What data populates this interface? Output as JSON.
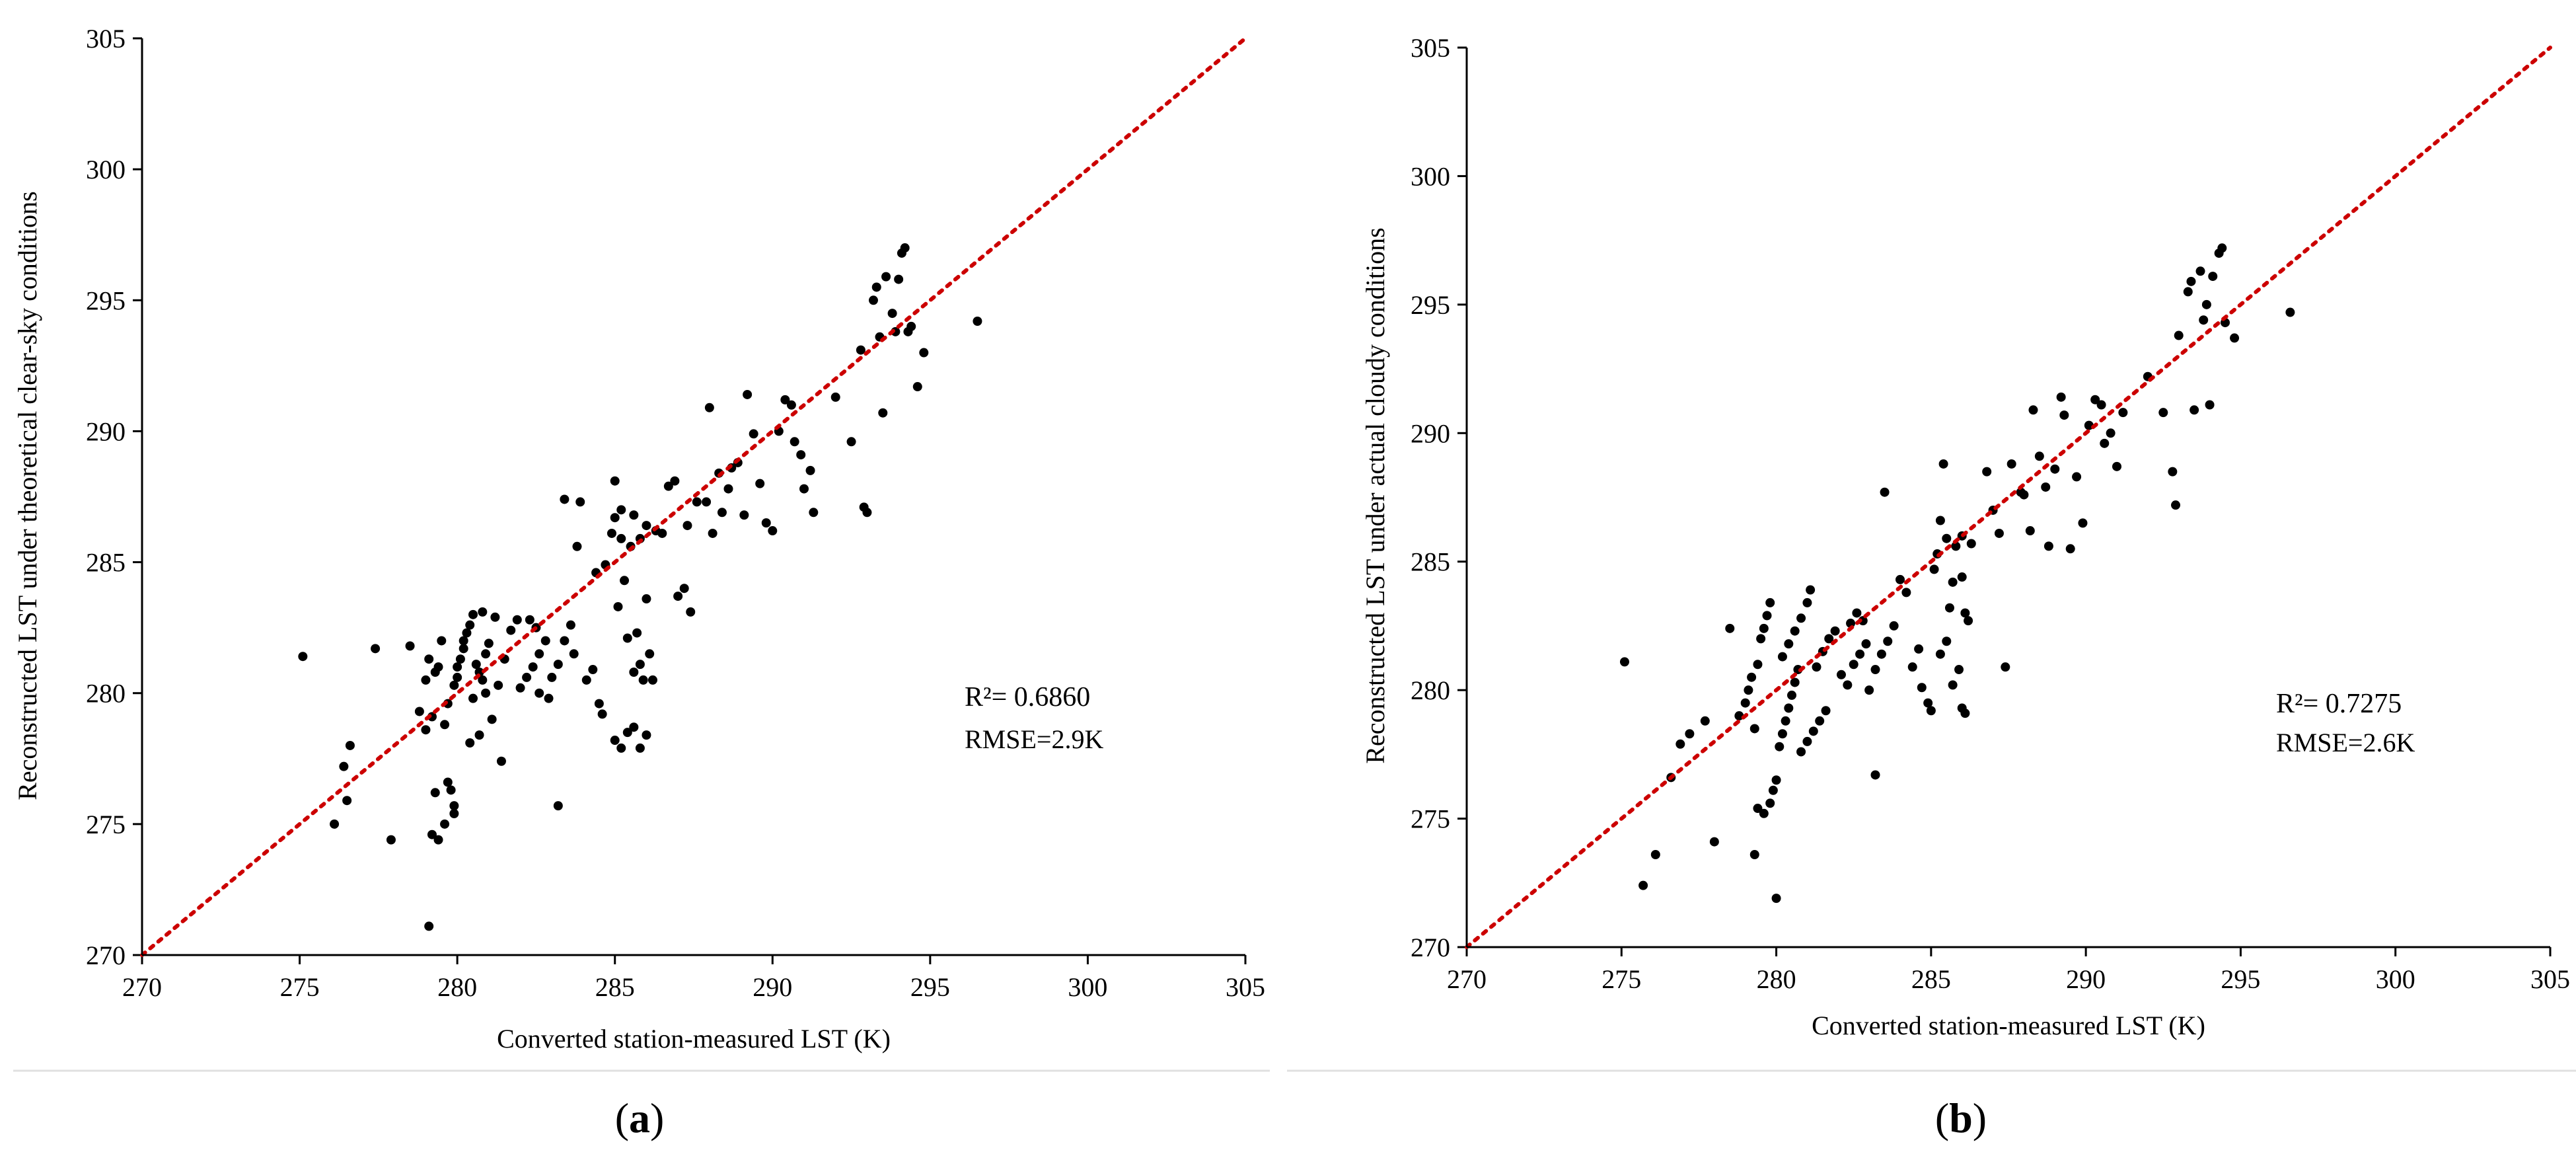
{
  "chart_data": [
    {
      "type": "scatter",
      "panel": "a",
      "caption_letter": "a",
      "xlabel": "Converted station-measured LST (K)",
      "ylabel": "Reconstructed LST under theoretical clear-sky conditions",
      "xlim": [
        270,
        305
      ],
      "ylim": [
        270,
        305
      ],
      "xticks": [
        270,
        275,
        280,
        285,
        290,
        295,
        300,
        305
      ],
      "yticks": [
        270,
        275,
        280,
        285,
        290,
        295,
        300,
        305
      ],
      "stats": {
        "r2": "R²= 0.6860",
        "rmse": "RMSE=2.9K"
      },
      "reference_line": "1:1",
      "points": [
        [
          275.1,
          281.4
        ],
        [
          276.1,
          275.0
        ],
        [
          276.5,
          275.9
        ],
        [
          276.6,
          278.0
        ],
        [
          276.4,
          277.2
        ],
        [
          277.4,
          281.7
        ],
        [
          277.9,
          274.4
        ],
        [
          278.5,
          281.8
        ],
        [
          279.0,
          280.5
        ],
        [
          278.8,
          279.3
        ],
        [
          279.0,
          278.6
        ],
        [
          279.2,
          279.1
        ],
        [
          279.3,
          280.8
        ],
        [
          279.4,
          281.0
        ],
        [
          279.1,
          281.3
        ],
        [
          279.5,
          282.0
        ],
        [
          279.3,
          276.2
        ],
        [
          279.4,
          274.4
        ],
        [
          279.2,
          274.6
        ],
        [
          279.6,
          275.0
        ],
        [
          279.8,
          276.3
        ],
        [
          279.7,
          276.6
        ],
        [
          279.9,
          275.7
        ],
        [
          279.9,
          275.4
        ],
        [
          279.1,
          271.1
        ],
        [
          279.6,
          278.8
        ],
        [
          279.7,
          279.6
        ],
        [
          279.9,
          280.3
        ],
        [
          280.0,
          280.6
        ],
        [
          280.0,
          281.0
        ],
        [
          280.1,
          281.3
        ],
        [
          280.2,
          281.7
        ],
        [
          280.2,
          282.0
        ],
        [
          280.3,
          282.3
        ],
        [
          280.4,
          282.6
        ],
        [
          280.5,
          283.0
        ],
        [
          280.6,
          281.1
        ],
        [
          280.7,
          280.8
        ],
        [
          280.8,
          280.5
        ],
        [
          280.9,
          281.5
        ],
        [
          281.0,
          281.9
        ],
        [
          280.4,
          278.1
        ],
        [
          280.7,
          278.4
        ],
        [
          281.1,
          279.0
        ],
        [
          280.5,
          279.8
        ],
        [
          280.9,
          280.0
        ],
        [
          281.3,
          280.3
        ],
        [
          281.5,
          281.3
        ],
        [
          281.7,
          282.4
        ],
        [
          281.9,
          282.8
        ],
        [
          281.2,
          282.9
        ],
        [
          280.8,
          283.1
        ],
        [
          281.4,
          277.4
        ],
        [
          282.0,
          280.2
        ],
        [
          282.2,
          280.6
        ],
        [
          282.4,
          281.0
        ],
        [
          282.6,
          281.5
        ],
        [
          282.8,
          282.0
        ],
        [
          282.5,
          282.5
        ],
        [
          282.3,
          282.8
        ],
        [
          282.6,
          280.0
        ],
        [
          282.9,
          279.8
        ],
        [
          283.0,
          280.6
        ],
        [
          283.2,
          281.1
        ],
        [
          283.4,
          282.0
        ],
        [
          283.6,
          282.6
        ],
        [
          283.7,
          281.5
        ],
        [
          283.2,
          275.7
        ],
        [
          283.4,
          287.4
        ],
        [
          283.8,
          285.6
        ],
        [
          283.9,
          287.3
        ],
        [
          284.1,
          280.5
        ],
        [
          284.3,
          280.9
        ],
        [
          284.5,
          279.6
        ],
        [
          284.6,
          279.2
        ],
        [
          284.4,
          284.6
        ],
        [
          284.7,
          284.9
        ],
        [
          284.9,
          286.1
        ],
        [
          285.0,
          286.7
        ],
        [
          285.2,
          285.9
        ],
        [
          285.0,
          288.1
        ],
        [
          285.2,
          287.0
        ],
        [
          285.3,
          284.3
        ],
        [
          285.5,
          285.6
        ],
        [
          285.6,
          286.8
        ],
        [
          285.8,
          285.9
        ],
        [
          286.0,
          286.4
        ],
        [
          285.1,
          283.3
        ],
        [
          285.0,
          278.2
        ],
        [
          285.2,
          277.9
        ],
        [
          285.4,
          278.5
        ],
        [
          285.6,
          278.7
        ],
        [
          285.8,
          277.9
        ],
        [
          286.0,
          278.4
        ],
        [
          285.8,
          281.1
        ],
        [
          285.6,
          280.8
        ],
        [
          285.9,
          280.5
        ],
        [
          286.1,
          281.5
        ],
        [
          286.2,
          280.5
        ],
        [
          285.4,
          282.1
        ],
        [
          285.7,
          282.3
        ],
        [
          286.0,
          283.6
        ],
        [
          286.3,
          286.2
        ],
        [
          286.5,
          286.1
        ],
        [
          286.7,
          287.9
        ],
        [
          286.9,
          288.1
        ],
        [
          287.2,
          284.0
        ],
        [
          287.4,
          283.1
        ],
        [
          287.0,
          283.7
        ],
        [
          287.3,
          286.4
        ],
        [
          287.6,
          287.3
        ],
        [
          287.9,
          287.3
        ],
        [
          288.1,
          286.1
        ],
        [
          288.0,
          290.9
        ],
        [
          288.3,
          288.4
        ],
        [
          288.4,
          286.9
        ],
        [
          288.6,
          287.8
        ],
        [
          288.7,
          288.6
        ],
        [
          288.9,
          288.8
        ],
        [
          289.1,
          286.8
        ],
        [
          289.2,
          291.4
        ],
        [
          289.4,
          289.9
        ],
        [
          289.6,
          288.0
        ],
        [
          289.8,
          286.5
        ],
        [
          290.0,
          286.2
        ],
        [
          290.2,
          290.0
        ],
        [
          290.4,
          291.2
        ],
        [
          290.6,
          291.0
        ],
        [
          290.7,
          289.6
        ],
        [
          290.9,
          289.1
        ],
        [
          291.0,
          287.8
        ],
        [
          291.2,
          288.5
        ],
        [
          291.3,
          286.9
        ],
        [
          292.0,
          291.3
        ],
        [
          292.5,
          289.6
        ],
        [
          292.8,
          293.1
        ],
        [
          292.9,
          287.1
        ],
        [
          293.0,
          286.9
        ],
        [
          293.2,
          295.0
        ],
        [
          293.3,
          295.5
        ],
        [
          293.4,
          293.6
        ],
        [
          293.5,
          290.7
        ],
        [
          293.6,
          295.9
        ],
        [
          293.8,
          294.5
        ],
        [
          293.9,
          293.8
        ],
        [
          294.0,
          295.8
        ],
        [
          294.1,
          296.8
        ],
        [
          294.2,
          297.0
        ],
        [
          294.3,
          293.8
        ],
        [
          294.4,
          294.0
        ],
        [
          294.6,
          291.7
        ],
        [
          294.8,
          293.0
        ],
        [
          296.5,
          294.2
        ]
      ]
    },
    {
      "type": "scatter",
      "panel": "b",
      "caption_letter": "b",
      "xlabel": "Converted station-measured LST (K)",
      "ylabel": "Reconstructed LST under actual cloudy conditions",
      "xlim": [
        270,
        305
      ],
      "ylim": [
        270,
        305
      ],
      "xticks": [
        270,
        275,
        280,
        285,
        290,
        295,
        300,
        305
      ],
      "yticks": [
        270,
        275,
        280,
        285,
        290,
        295,
        300,
        305
      ],
      "stats": {
        "r2": "R²= 0.7275",
        "rmse": "RMSE=2.6K"
      },
      "reference_line": "1:1",
      "points": [
        [
          275.1,
          281.1
        ],
        [
          275.7,
          272.4
        ],
        [
          276.1,
          273.6
        ],
        [
          276.6,
          276.6
        ],
        [
          276.9,
          277.9
        ],
        [
          277.2,
          278.3
        ],
        [
          277.7,
          278.8
        ],
        [
          278.0,
          274.1
        ],
        [
          278.5,
          282.4
        ],
        [
          278.8,
          279.0
        ],
        [
          279.0,
          279.5
        ],
        [
          279.1,
          280.0
        ],
        [
          279.2,
          280.5
        ],
        [
          279.4,
          281.0
        ],
        [
          279.3,
          278.5
        ],
        [
          279.5,
          282.0
        ],
        [
          279.6,
          282.4
        ],
        [
          279.7,
          282.9
        ],
        [
          279.8,
          283.4
        ],
        [
          279.4,
          275.4
        ],
        [
          279.6,
          275.2
        ],
        [
          279.8,
          275.6
        ],
        [
          279.9,
          276.1
        ],
        [
          280.0,
          276.5
        ],
        [
          279.3,
          273.6
        ],
        [
          280.0,
          271.9
        ],
        [
          280.1,
          277.8
        ],
        [
          280.2,
          278.3
        ],
        [
          280.3,
          278.8
        ],
        [
          280.4,
          279.3
        ],
        [
          280.5,
          279.8
        ],
        [
          280.6,
          280.3
        ],
        [
          280.7,
          280.8
        ],
        [
          280.2,
          281.3
        ],
        [
          280.4,
          281.8
        ],
        [
          280.6,
          282.3
        ],
        [
          280.8,
          282.8
        ],
        [
          281.0,
          283.4
        ],
        [
          281.1,
          283.9
        ],
        [
          280.8,
          277.6
        ],
        [
          281.0,
          278.0
        ],
        [
          281.2,
          278.4
        ],
        [
          281.4,
          278.8
        ],
        [
          281.6,
          279.2
        ],
        [
          281.3,
          280.9
        ],
        [
          281.5,
          281.5
        ],
        [
          281.7,
          282.0
        ],
        [
          281.9,
          282.3
        ],
        [
          282.1,
          280.6
        ],
        [
          282.3,
          280.2
        ],
        [
          282.5,
          281.0
        ],
        [
          282.7,
          281.4
        ],
        [
          282.9,
          281.8
        ],
        [
          282.4,
          282.6
        ],
        [
          282.6,
          283.0
        ],
        [
          282.8,
          282.7
        ],
        [
          283.0,
          280.0
        ],
        [
          283.2,
          280.8
        ],
        [
          283.4,
          281.4
        ],
        [
          283.6,
          281.9
        ],
        [
          283.8,
          282.5
        ],
        [
          283.2,
          276.7
        ],
        [
          283.5,
          287.7
        ],
        [
          284.0,
          284.3
        ],
        [
          284.2,
          283.8
        ],
        [
          284.4,
          280.9
        ],
        [
          284.6,
          281.6
        ],
        [
          284.7,
          280.1
        ],
        [
          284.9,
          279.5
        ],
        [
          285.0,
          279.2
        ],
        [
          285.1,
          284.7
        ],
        [
          285.2,
          285.3
        ],
        [
          285.3,
          286.6
        ],
        [
          285.4,
          288.8
        ],
        [
          285.5,
          285.9
        ],
        [
          285.6,
          283.2
        ],
        [
          285.7,
          284.2
        ],
        [
          285.8,
          285.6
        ],
        [
          286.0,
          286.0
        ],
        [
          286.1,
          283.0
        ],
        [
          285.3,
          281.4
        ],
        [
          285.5,
          281.9
        ],
        [
          285.7,
          280.2
        ],
        [
          285.9,
          280.8
        ],
        [
          286.0,
          279.3
        ],
        [
          286.1,
          279.1
        ],
        [
          286.2,
          282.7
        ],
        [
          286.0,
          284.4
        ],
        [
          286.3,
          285.7
        ],
        [
          286.8,
          288.5
        ],
        [
          287.0,
          287.0
        ],
        [
          287.2,
          286.1
        ],
        [
          287.4,
          280.9
        ],
        [
          287.6,
          288.8
        ],
        [
          287.9,
          287.7
        ],
        [
          288.0,
          287.6
        ],
        [
          288.2,
          286.2
        ],
        [
          288.3,
          290.9
        ],
        [
          288.5,
          289.1
        ],
        [
          288.7,
          287.9
        ],
        [
          288.8,
          285.6
        ],
        [
          289.0,
          288.6
        ],
        [
          289.2,
          291.4
        ],
        [
          289.3,
          290.7
        ],
        [
          289.5,
          285.5
        ],
        [
          289.7,
          288.3
        ],
        [
          289.9,
          286.5
        ],
        [
          290.1,
          290.3
        ],
        [
          290.3,
          291.3
        ],
        [
          290.5,
          291.1
        ],
        [
          290.6,
          289.6
        ],
        [
          290.8,
          290.0
        ],
        [
          291.0,
          288.7
        ],
        [
          291.2,
          290.8
        ],
        [
          292.0,
          292.2
        ],
        [
          292.5,
          290.8
        ],
        [
          292.8,
          288.5
        ],
        [
          292.9,
          287.2
        ],
        [
          293.0,
          293.8
        ],
        [
          293.3,
          295.5
        ],
        [
          293.4,
          295.9
        ],
        [
          293.5,
          290.9
        ],
        [
          293.7,
          296.3
        ],
        [
          293.8,
          294.4
        ],
        [
          293.9,
          295.0
        ],
        [
          294.0,
          291.1
        ],
        [
          294.1,
          296.1
        ],
        [
          294.3,
          297.0
        ],
        [
          294.4,
          297.2
        ],
        [
          294.5,
          294.3
        ],
        [
          294.8,
          293.7
        ],
        [
          296.6,
          294.7
        ]
      ]
    }
  ]
}
